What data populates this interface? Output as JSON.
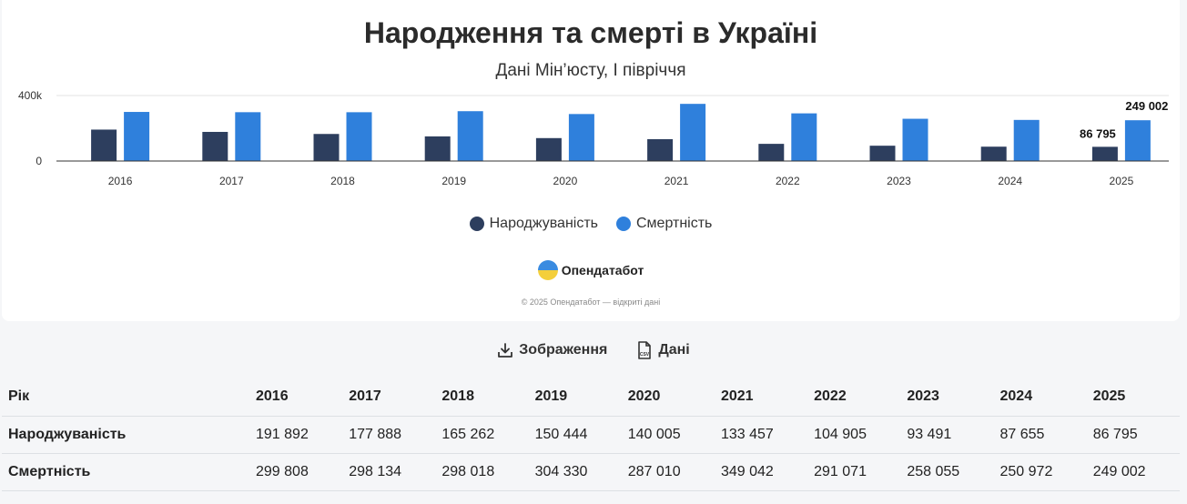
{
  "header": {
    "title": "Народження та смерті в Україні",
    "subtitle": "Дані Мін’юсту, І півріччя"
  },
  "chart_data": {
    "type": "bar",
    "categories": [
      "2016",
      "2017",
      "2018",
      "2019",
      "2020",
      "2021",
      "2022",
      "2023",
      "2024",
      "2025"
    ],
    "series": [
      {
        "name": "Народжуваність",
        "color": "#2d3e5e",
        "values": [
          191892,
          177888,
          165262,
          150444,
          140005,
          133457,
          104905,
          93491,
          87655,
          86795
        ]
      },
      {
        "name": "Смертність",
        "color": "#2f80dc",
        "values": [
          299808,
          298134,
          298018,
          304330,
          287010,
          349042,
          291071,
          258055,
          250972,
          249002
        ]
      }
    ],
    "y_ticks": [
      "0",
      "400k"
    ],
    "ylim": [
      0,
      400000
    ],
    "grid": true,
    "legend_position": "bottom",
    "data_labels": {
      "Народжуваність": "86 795",
      "Смертність": "249 002"
    }
  },
  "brand": {
    "name": "Опендатабот"
  },
  "copyright": "© 2025 Опендатабот — відкриті дані",
  "toolbar": {
    "image_label": "Зображення",
    "data_label": "Дані"
  },
  "table": {
    "header": [
      "Рік",
      "2016",
      "2017",
      "2018",
      "2019",
      "2020",
      "2021",
      "2022",
      "2023",
      "2024",
      "2025"
    ],
    "rows": [
      [
        "Народжуваність",
        "191 892",
        "177 888",
        "165 262",
        "150 444",
        "140 005",
        "133 457",
        "104 905",
        "93 491",
        "87 655",
        "86 795"
      ],
      [
        "Смертність",
        "299 808",
        "298 134",
        "298 018",
        "304 330",
        "287 010",
        "349 042",
        "291 071",
        "258 055",
        "250 972",
        "249 002"
      ]
    ]
  }
}
